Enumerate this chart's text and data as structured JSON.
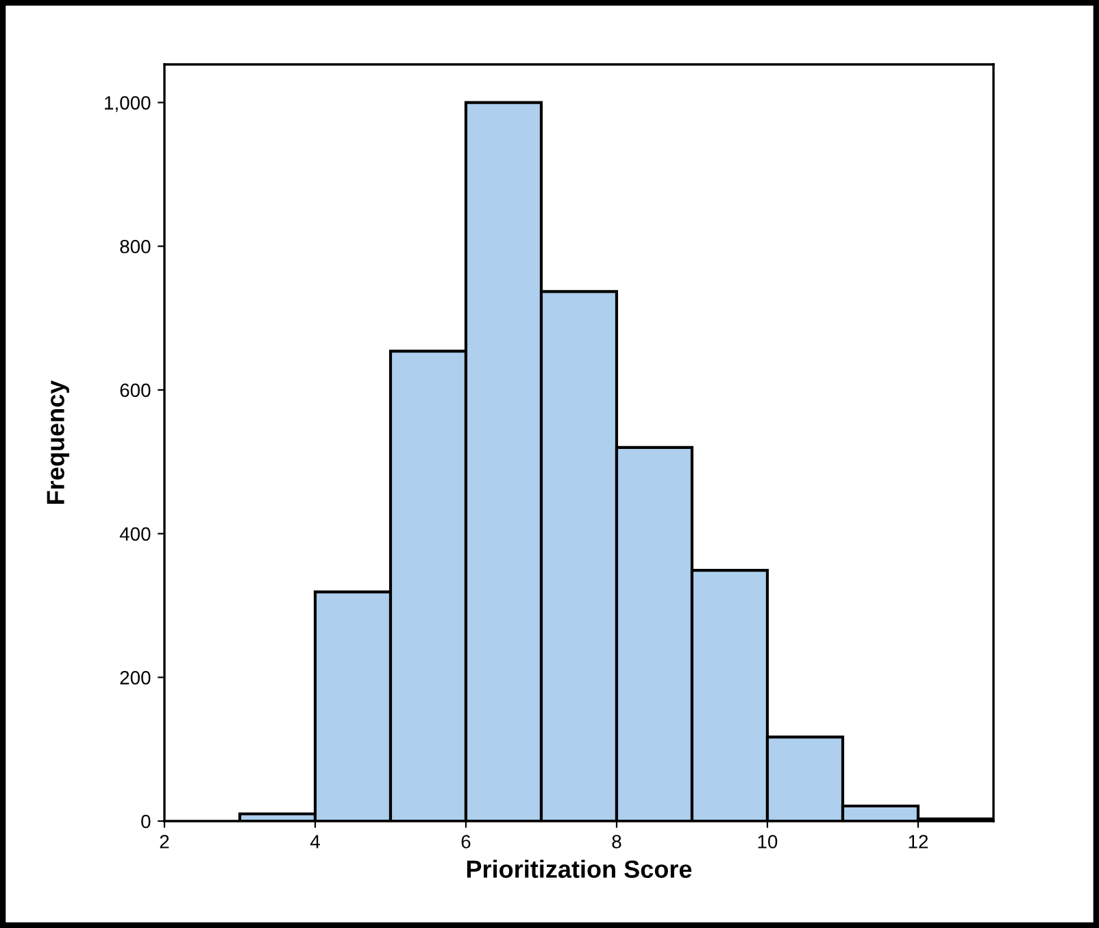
{
  "chart_data": {
    "type": "histogram",
    "xlabel": "Prioritization Score",
    "ylabel": "Frequency",
    "bins": [
      2,
      3,
      4,
      5,
      6,
      7,
      8,
      9,
      10,
      11,
      12,
      13
    ],
    "values": [
      null,
      10,
      319,
      654,
      1000,
      737,
      520,
      349,
      117,
      21,
      3
    ],
    "color": "#aecfee",
    "xlim": [
      2,
      13
    ],
    "xticks": [
      2,
      4,
      6,
      8,
      10,
      12
    ],
    "ylim": [
      0,
      1053
    ],
    "yticks": [
      {
        "value": 0,
        "label": "0"
      },
      {
        "value": 200,
        "label": "200"
      },
      {
        "value": 400,
        "label": "400"
      },
      {
        "value": 600,
        "label": "600"
      },
      {
        "value": 800,
        "label": "800"
      },
      {
        "value": 1000,
        "label": "1,000"
      }
    ],
    "grid": false
  }
}
